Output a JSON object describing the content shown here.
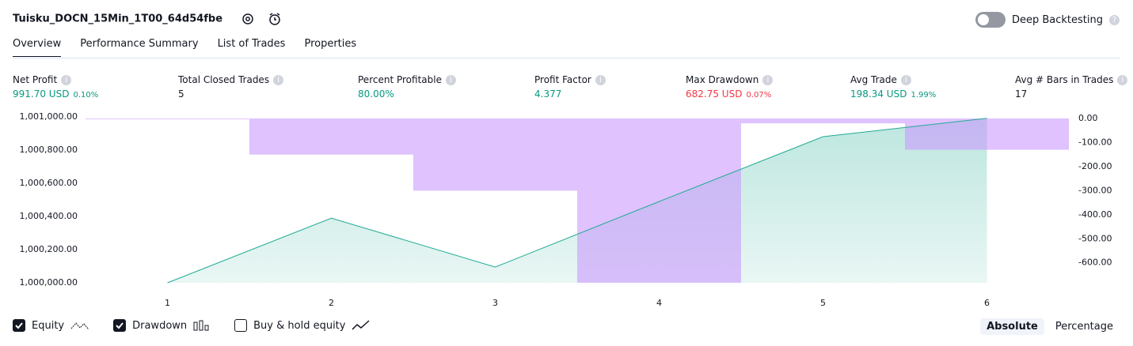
{
  "header": {
    "title": "Tuisku_DOCN_15Min_1T00_64d54fbe",
    "toggle_label": "Deep Backtesting"
  },
  "tabs": [
    "Overview",
    "Performance Summary",
    "List of Trades",
    "Properties"
  ],
  "metrics": [
    {
      "label": "Net Profit",
      "value": "991.70 USD",
      "percent": "0.10%",
      "tone": "positive"
    },
    {
      "label": "Total Closed Trades",
      "value": "5",
      "tone": "neutral"
    },
    {
      "label": "Percent Profitable",
      "value": "80.00%",
      "tone": "positive"
    },
    {
      "label": "Profit Factor",
      "value": "4.377",
      "tone": "positive"
    },
    {
      "label": "Max Drawdown",
      "value": "682.75 USD",
      "percent": "0.07%",
      "tone": "negative"
    },
    {
      "label": "Avg Trade",
      "value": "198.34 USD",
      "percent": "1.99%",
      "tone": "positive"
    },
    {
      "label": "Avg # Bars in Trades",
      "value": "17",
      "tone": "neutral"
    }
  ],
  "chart_data": {
    "type": "combo",
    "x": [
      1,
      2,
      3,
      4,
      5,
      6
    ],
    "xlim": [
      0.5,
      6.5
    ],
    "xticks": [
      1,
      2,
      3,
      4,
      5,
      6
    ],
    "ylim": [
      1000000,
      1001000
    ],
    "yticks": [
      {
        "value": 1000000,
        "label": "1,000,000.00"
      },
      {
        "value": 1000200,
        "label": "1,000,200.00"
      },
      {
        "value": 1000400,
        "label": "1,000,400.00"
      },
      {
        "value": 1000600,
        "label": "1,000,600.00"
      },
      {
        "value": 1000800,
        "label": "1,000,800.00"
      },
      {
        "value": 1001000,
        "label": "1,001,000.00"
      }
    ],
    "y2lim": [
      -683,
      6.5
    ],
    "y2ticks": [
      {
        "value": 0,
        "label": "0.00"
      },
      {
        "value": -100,
        "label": "-100.00"
      },
      {
        "value": -200,
        "label": "-200.00"
      },
      {
        "value": -300,
        "label": "-300.00"
      },
      {
        "value": -400,
        "label": "-400.00"
      },
      {
        "value": -500,
        "label": "-500.00"
      },
      {
        "value": -600,
        "label": "-600.00"
      }
    ],
    "series": [
      {
        "name": "Equity",
        "type": "line",
        "color": "#22ab94",
        "axis": "y",
        "values": [
          1000000,
          1000390,
          1000095,
          1000490,
          1000881,
          1000991.7
        ]
      },
      {
        "name": "Drawdown",
        "type": "bar",
        "color": "#c999fd",
        "axis": "y2",
        "values": [
          0,
          -150,
          -300,
          -682.75,
          -20,
          -130
        ]
      }
    ],
    "extra_legend": "Buy & hold equity"
  },
  "view_buttons": [
    "Absolute",
    "Percentage"
  ]
}
